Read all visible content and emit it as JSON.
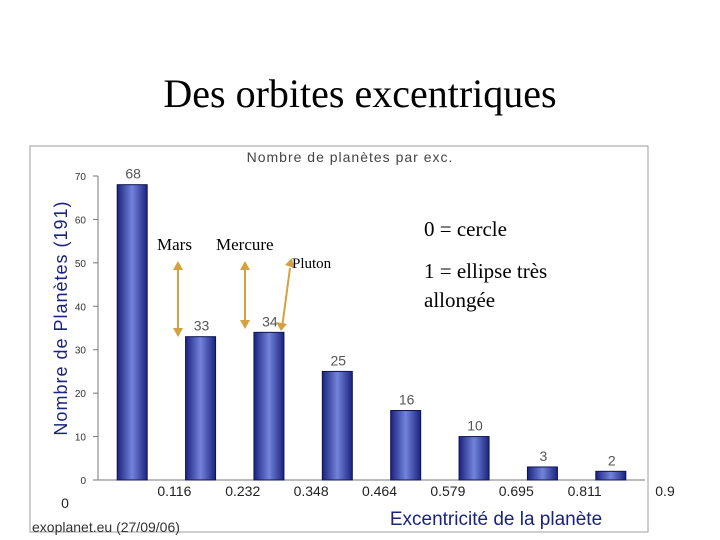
{
  "slide": {
    "title": "Des orbites excentriques"
  },
  "chart_data": {
    "type": "bar",
    "title": "Nombre de planètes par exc.",
    "xlabel": "Excentricité de la planète",
    "ylabel": "Nombre de Planètes (191)",
    "ylim": [
      0,
      70
    ],
    "yticks": [
      "0",
      "10",
      "20",
      "30",
      "40",
      "50",
      "60",
      "70"
    ],
    "xticks": [
      "0",
      "0.116",
      "0.232",
      "0.348",
      "0.464",
      "0.579",
      "0.695",
      "0.811",
      "0.9"
    ],
    "categories": [
      "0–0.116",
      "0.116–0.232",
      "0.232–0.348",
      "0.348–0.464",
      "0.464–0.579",
      "0.579–0.695",
      "0.695–0.811",
      "0.811–0.9"
    ],
    "values": [
      68,
      33,
      34,
      25,
      16,
      10,
      3,
      2
    ],
    "value_labels": [
      "68",
      "33",
      "34",
      "25",
      "16",
      "10",
      "3",
      "2"
    ],
    "annotations": {
      "mars": "Mars",
      "mercure": "Mercure",
      "pluton": "Pluton",
      "circle_note": "0 = cercle",
      "ellipse_note_line1": "1 = ellipse très",
      "ellipse_note_line2": "allongée"
    },
    "source": "exoplanet.eu (27/09/06)",
    "colors": {
      "bar_dark": "#14206e",
      "bar_light": "#6f7fd6",
      "label": "#555555",
      "xlabel": "#1a237e",
      "ylabel": "#1a237e",
      "arrow": "#d4a040"
    },
    "grid": false
  }
}
